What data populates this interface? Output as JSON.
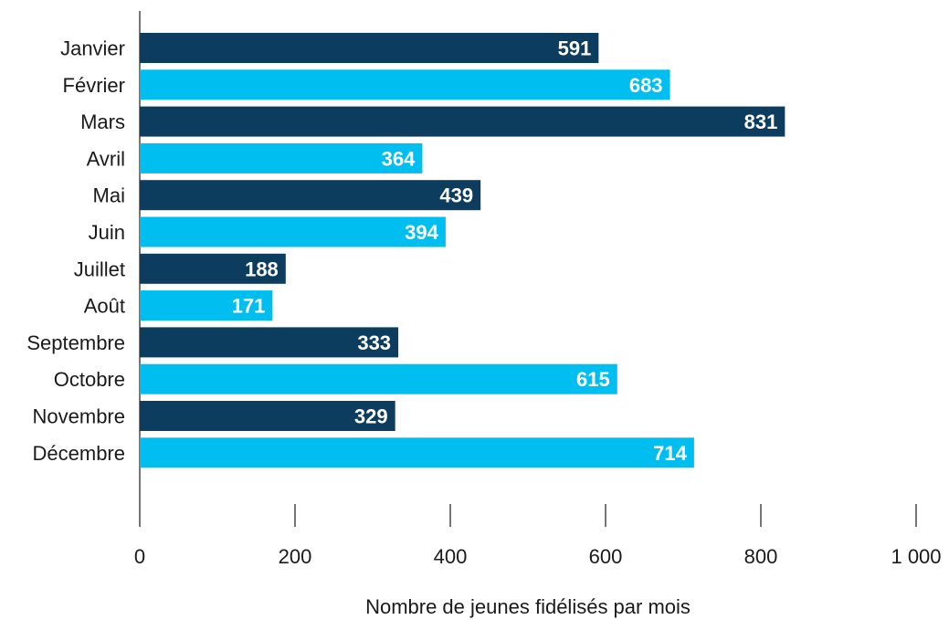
{
  "chart_data": {
    "type": "bar",
    "orientation": "horizontal",
    "categories": [
      "Janvier",
      "Février",
      "Mars",
      "Avril",
      "Mai",
      "Juin",
      "Juillet",
      "Août",
      "Septembre",
      "Octobre",
      "Novembre",
      "Décembre"
    ],
    "values": [
      591,
      683,
      831,
      364,
      439,
      394,
      188,
      171,
      333,
      615,
      329,
      714
    ],
    "xlabel": "Nombre de jeunes fidélisés par mois",
    "xlim": [
      0,
      1000
    ],
    "x_ticks": [
      0,
      200,
      400,
      600,
      800,
      1000
    ],
    "x_tick_labels": [
      "0",
      "200",
      "400",
      "600",
      "800",
      "1 000"
    ],
    "colors": [
      "#0c3c5e",
      "#00bff0"
    ],
    "grid": false
  }
}
